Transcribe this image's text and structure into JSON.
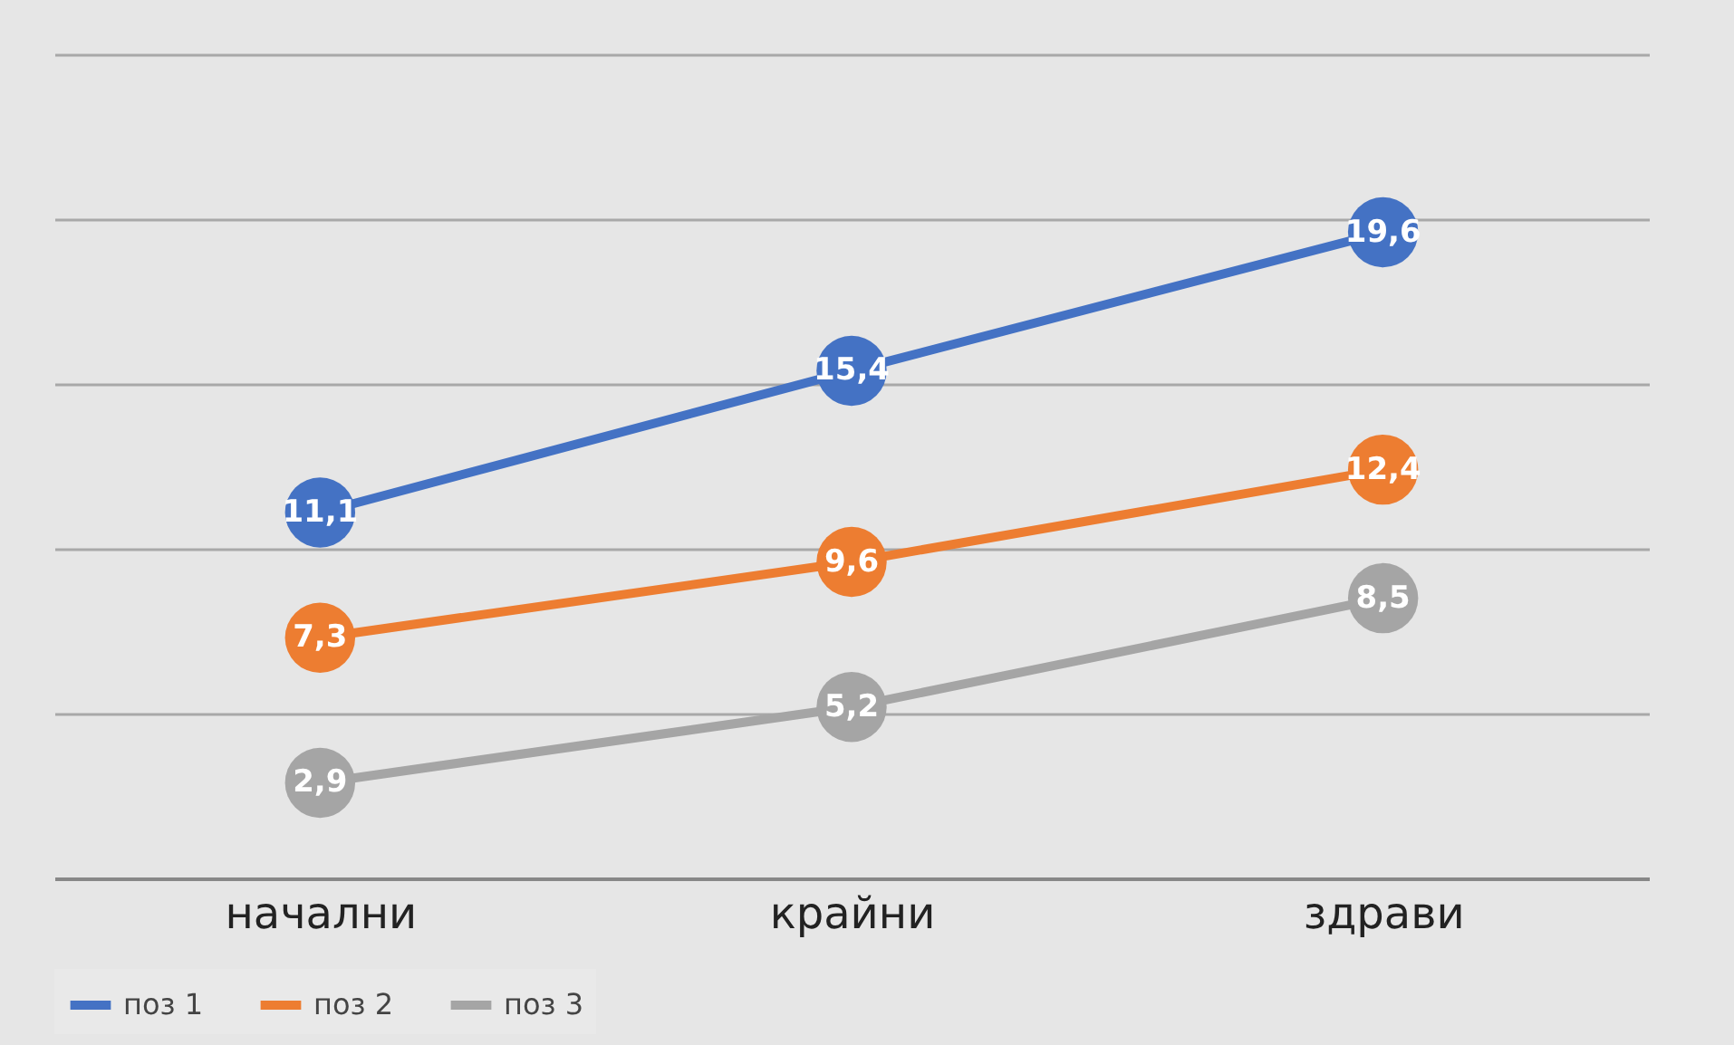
{
  "chart_data": {
    "type": "line",
    "categories": [
      "начални",
      "крайни",
      "здрави"
    ],
    "series": [
      {
        "name": "поз 1",
        "color": "#4472c4",
        "values": [
          11.1,
          15.4,
          19.6
        ],
        "value_labels": [
          "11,1",
          "15,4",
          "19,6"
        ]
      },
      {
        "name": "поз 2",
        "color": "#ed7d31",
        "values": [
          7.3,
          9.6,
          12.4
        ],
        "value_labels": [
          "7,3",
          "9,6",
          "12,4"
        ]
      },
      {
        "name": "поз 3",
        "color": "#a5a5a5",
        "values": [
          2.9,
          5.2,
          8.5
        ],
        "value_labels": [
          "2,9",
          "5,2",
          "8,5"
        ]
      }
    ],
    "ylim": [
      0,
      25
    ],
    "yticks": [
      0,
      5,
      10,
      15,
      20,
      25
    ],
    "grid": "y",
    "legend": "bottom",
    "tick_labels": "x",
    "marker": "circle",
    "line_style": "solid"
  }
}
